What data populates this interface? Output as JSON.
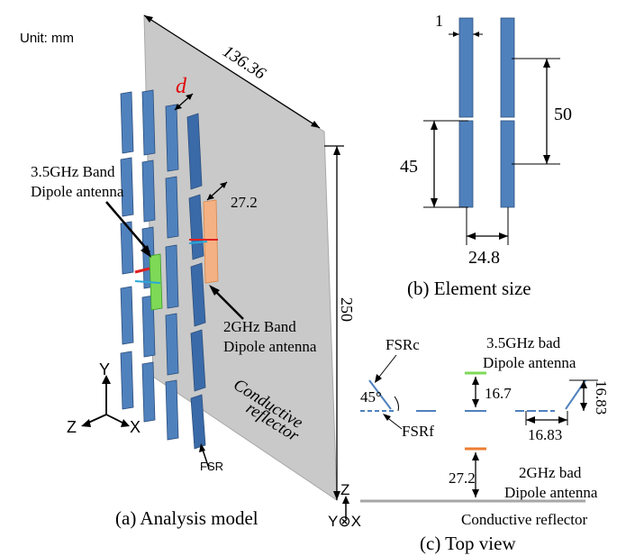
{
  "panel_a": {
    "unit": "Unit: mm",
    "width_dim": "136.36",
    "height_dim": "250",
    "spacing_var": "d",
    "fsrc_dipole_gap": "27.2",
    "label_35_line1": "3.5GHz Band",
    "label_35_line2": "Dipole antenna",
    "label_2g_line1": "2GHz Band",
    "label_2g_line2": "Dipole antenna",
    "reflector_line1": "Conductive",
    "reflector_line2": "reflector",
    "fsr_label": "FSR",
    "axis_y": "Y",
    "axis_z": "Z",
    "axis_x": "X",
    "caption": "(a) Analysis model",
    "colors": {
      "reflector": "#c9c9c9",
      "element": "#4f81bd",
      "dipole_35": "#7ed957",
      "dipole_2g": "#f4b183",
      "feed": "#e02020"
    }
  },
  "panel_b": {
    "width": "1",
    "length_short": "45",
    "length_long": "50",
    "spacing": "24.8",
    "caption": "(b) Element size"
  },
  "panel_c": {
    "fsrc": "FSRc",
    "angle": "45°",
    "fsrf": "FSRf",
    "label_35_line1": "3.5GHz bad",
    "label_35_line2": "Dipole antenna",
    "height_35": "16.7",
    "offset_vertical": "16.83",
    "offset_horizontal": "16.83",
    "height_2g": "27.2",
    "label_2g_line1": "2GHz bad",
    "label_2g_line2": "Dipole antenna",
    "reflector": "Conductive reflector",
    "axis_z": "Z",
    "axis_yx": "Y⊗X",
    "caption": "(c) Top view"
  }
}
